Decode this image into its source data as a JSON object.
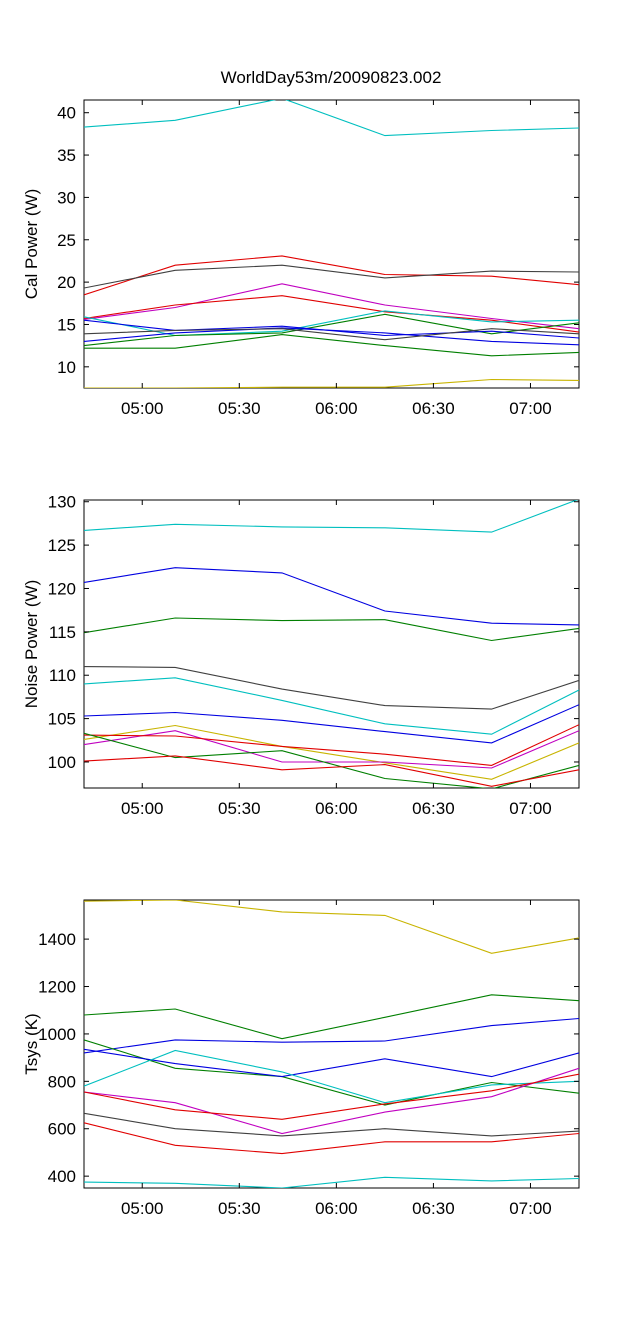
{
  "figure_title": "WorldDay53m/20090823.002",
  "colors": {
    "cyan": "#00bfbf",
    "red": "#e00000",
    "black": "#404040",
    "magenta": "#c000c0",
    "blue": "#0000e0",
    "green": "#007f00",
    "yellow": "#c8b400"
  },
  "chart_data": [
    {
      "type": "line",
      "title": "WorldDay53m/20090823.002",
      "xlabel": "",
      "ylabel": "Cal Power (W)",
      "x": [
        4.7,
        5.17,
        5.72,
        6.25,
        6.8,
        7.25
      ],
      "xlim": [
        4.7,
        7.25
      ],
      "ylim": [
        7.5,
        41.5
      ],
      "xticks": [
        5.0,
        5.5,
        6.0,
        6.5,
        7.0
      ],
      "xtick_labels": [
        "05:00",
        "05:30",
        "06:00",
        "06:30",
        "07:00"
      ],
      "yticks": [
        10,
        15,
        20,
        25,
        30,
        35,
        40
      ],
      "ytick_labels": [
        "10",
        "15",
        "20",
        "25",
        "30",
        "35",
        "40"
      ],
      "grid": false,
      "series": [
        {
          "color": "cyan",
          "values": [
            38.3,
            39.1,
            41.7,
            37.3,
            37.9,
            38.2
          ]
        },
        {
          "color": "red",
          "values": [
            18.5,
            22.0,
            23.1,
            20.9,
            20.7,
            19.7
          ]
        },
        {
          "color": "black",
          "values": [
            19.3,
            21.4,
            22.0,
            20.5,
            21.3,
            21.2
          ]
        },
        {
          "color": "magenta",
          "values": [
            15.6,
            17.0,
            19.8,
            17.3,
            15.7,
            14.5
          ]
        },
        {
          "color": "red",
          "values": [
            15.7,
            17.3,
            18.4,
            16.5,
            15.5,
            14.1
          ]
        },
        {
          "color": "cyan",
          "values": [
            15.9,
            13.7,
            14.2,
            16.6,
            15.3,
            15.5
          ]
        },
        {
          "color": "green",
          "values": [
            12.5,
            13.7,
            14.0,
            16.2,
            13.9,
            15.2
          ]
        },
        {
          "color": "blue",
          "values": [
            15.5,
            14.3,
            14.8,
            13.7,
            14.2,
            13.4
          ]
        },
        {
          "color": "blue",
          "values": [
            13.0,
            14.0,
            14.6,
            14.0,
            13.0,
            12.6
          ]
        },
        {
          "color": "black",
          "values": [
            13.9,
            14.3,
            14.5,
            13.2,
            14.5,
            13.9
          ]
        },
        {
          "color": "green",
          "values": [
            12.2,
            12.2,
            13.8,
            12.5,
            11.3,
            11.7
          ]
        },
        {
          "color": "yellow",
          "values": [
            7.5,
            7.5,
            7.6,
            7.6,
            8.5,
            8.4
          ]
        }
      ]
    },
    {
      "type": "line",
      "title": "",
      "xlabel": "",
      "ylabel": "Noise Power (W)",
      "x": [
        4.7,
        5.17,
        5.72,
        6.25,
        6.8,
        7.25
      ],
      "xlim": [
        4.7,
        7.25
      ],
      "ylim": [
        97,
        130.2
      ],
      "xticks": [
        5.0,
        5.5,
        6.0,
        6.5,
        7.0
      ],
      "xtick_labels": [
        "05:00",
        "05:30",
        "06:00",
        "06:30",
        "07:00"
      ],
      "yticks": [
        100,
        105,
        110,
        115,
        120,
        125,
        130
      ],
      "ytick_labels": [
        "100",
        "105",
        "110",
        "115",
        "120",
        "125",
        "130"
      ],
      "grid": false,
      "series": [
        {
          "color": "cyan",
          "values": [
            126.7,
            127.4,
            127.1,
            127.0,
            126.5,
            130.3
          ]
        },
        {
          "color": "blue",
          "values": [
            120.7,
            122.4,
            121.8,
            117.4,
            116.0,
            115.8
          ]
        },
        {
          "color": "green",
          "values": [
            114.9,
            116.6,
            116.3,
            116.4,
            114.0,
            115.4
          ]
        },
        {
          "color": "black",
          "values": [
            111.0,
            110.9,
            108.4,
            106.5,
            106.1,
            109.4
          ]
        },
        {
          "color": "cyan",
          "values": [
            109.0,
            109.7,
            107.1,
            104.4,
            103.2,
            108.3
          ]
        },
        {
          "color": "blue",
          "values": [
            105.3,
            105.7,
            104.8,
            103.5,
            102.2,
            106.6
          ]
        },
        {
          "color": "yellow",
          "values": [
            102.6,
            104.2,
            101.8,
            99.9,
            98.0,
            102.2
          ]
        },
        {
          "color": "magenta",
          "values": [
            102.0,
            103.6,
            100.0,
            100.0,
            99.3,
            103.6
          ]
        },
        {
          "color": "red",
          "values": [
            103.1,
            103.0,
            101.8,
            100.9,
            99.6,
            104.3
          ]
        },
        {
          "color": "green",
          "values": [
            103.3,
            100.5,
            101.3,
            98.1,
            96.9,
            99.6
          ]
        },
        {
          "color": "red",
          "values": [
            100.1,
            100.7,
            99.1,
            99.7,
            97.2,
            99.1
          ]
        }
      ]
    },
    {
      "type": "line",
      "title": "",
      "xlabel": "",
      "ylabel": "Tsys (K)",
      "x": [
        4.7,
        5.17,
        5.72,
        6.25,
        6.8,
        7.25
      ],
      "xlim": [
        4.7,
        7.25
      ],
      "ylim": [
        350,
        1565
      ],
      "xticks": [
        5.0,
        5.5,
        6.0,
        6.5,
        7.0
      ],
      "xtick_labels": [
        "05:00",
        "05:30",
        "06:00",
        "06:30",
        "07:00"
      ],
      "yticks": [
        400,
        600,
        800,
        1000,
        1200,
        1400
      ],
      "ytick_labels": [
        "400",
        "600",
        "800",
        "1000",
        "1200",
        "1400"
      ],
      "grid": false,
      "series": [
        {
          "color": "yellow",
          "values": [
            1560,
            1565,
            1515,
            1500,
            1340,
            1405
          ]
        },
        {
          "color": "green",
          "values": [
            1080,
            1105,
            980,
            1070,
            1165,
            1140
          ]
        },
        {
          "color": "blue",
          "values": [
            920,
            975,
            965,
            970,
            1035,
            1065
          ]
        },
        {
          "color": "green",
          "values": [
            975,
            855,
            820,
            700,
            795,
            750
          ]
        },
        {
          "color": "blue",
          "values": [
            935,
            875,
            820,
            895,
            820,
            920
          ]
        },
        {
          "color": "cyan",
          "values": [
            780,
            930,
            840,
            710,
            785,
            800
          ]
        },
        {
          "color": "magenta",
          "values": [
            755,
            710,
            580,
            670,
            735,
            855
          ]
        },
        {
          "color": "red",
          "values": [
            755,
            680,
            640,
            705,
            760,
            830
          ]
        },
        {
          "color": "black",
          "values": [
            665,
            600,
            570,
            600,
            570,
            590
          ]
        },
        {
          "color": "red",
          "values": [
            625,
            530,
            495,
            545,
            545,
            580
          ]
        },
        {
          "color": "cyan",
          "values": [
            375,
            370,
            350,
            395,
            380,
            390
          ]
        }
      ]
    }
  ]
}
